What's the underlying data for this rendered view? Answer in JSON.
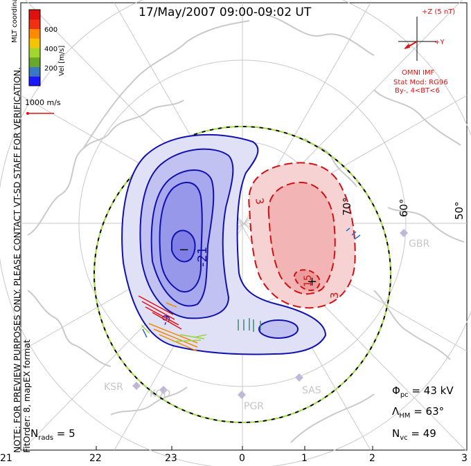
{
  "title": "17/May/2007 09:00-09:02 UT",
  "colorbar": {
    "label": "Vel [m/s]",
    "ticks": [
      "600",
      "400",
      "200"
    ],
    "colors": [
      "#1a16ff",
      "#3a78c2",
      "#6aa82a",
      "#a3d62c",
      "#f5c400",
      "#ff8a00",
      "#f03010",
      "#e01010"
    ]
  },
  "coords_label": "MLT coordinates",
  "scale_label": "1000 m/s",
  "notes": {
    "preview": "NOTE: FOR PREVIEW PURPOSES ONLY. PLEASE CONTACT VT-SD STAFF FOR VERIFICATION.",
    "fitorder": "FitOrder: 8, mapEX format"
  },
  "imf": {
    "z_label": "+Z (5 nT)",
    "y_label": "+Y",
    "source": "OMNI IMF"
  },
  "stat_model": {
    "line1": "Stat Mod: RG96",
    "line2": "By-, 4<BT<6"
  },
  "latitude_labels": [
    "70°",
    "60°",
    "50°"
  ],
  "contour_labels": {
    "neg_big": "-21",
    "neg_small": "-9",
    "pos_a": "3",
    "pos_b": "3",
    "pos_c": "15",
    "min_marker": "−",
    "max_marker": "+"
  },
  "stations": [
    "GBR",
    "KSR",
    "KOD",
    "PGR",
    "SAS"
  ],
  "stats": {
    "phi_pc": "43 kV",
    "lambda_hm": "63°",
    "n_vc": "49",
    "n_rads": "5"
  },
  "mlt_ticks": [
    "21",
    "22",
    "23",
    "0",
    "1",
    "2",
    "3"
  ],
  "colors": {
    "neg_fill": "#8a8af0",
    "neg_line": "#1010b0",
    "pos_fill": "#f2a0a0",
    "pos_line": "#d01010",
    "grid": "#c8c8c8",
    "imf": "#dd1111"
  }
}
